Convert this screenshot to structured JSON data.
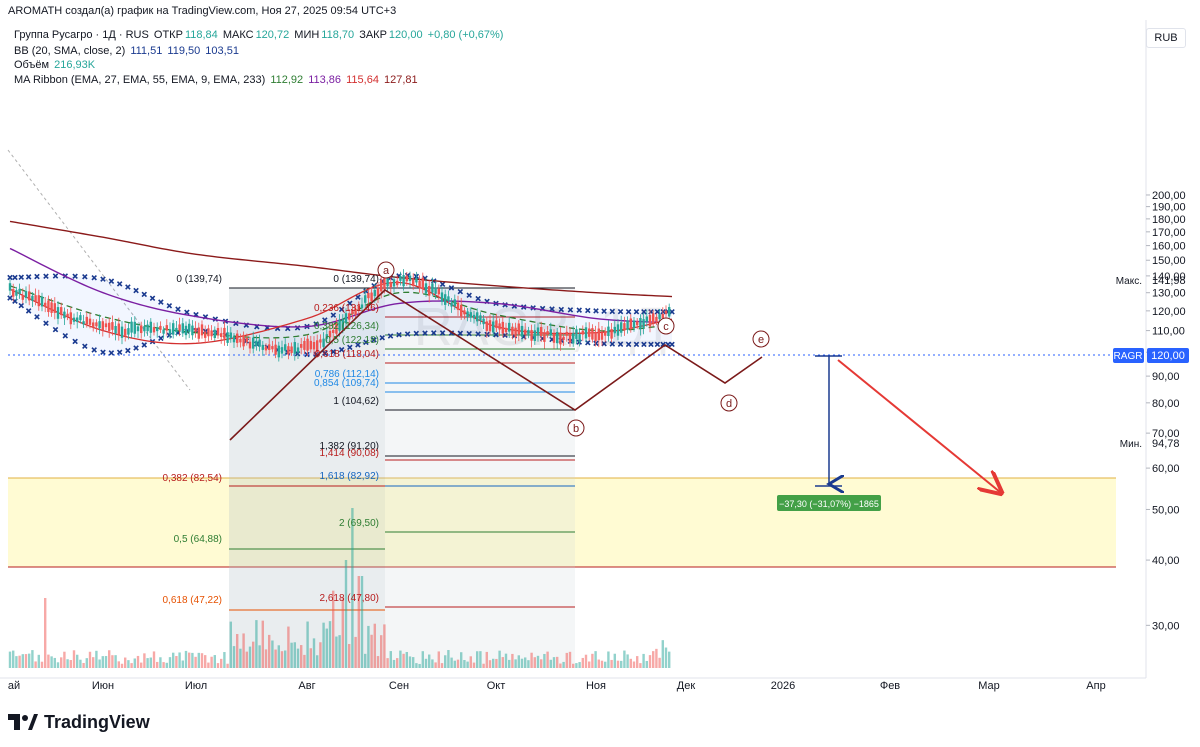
{
  "header": {
    "text": "AROMATH создал(а) график на TradingView.com, Ноя 27, 2025 09:54 UTC+3"
  },
  "legend": {
    "symbol": "Группа Русагро · 1Д · RUS",
    "ohlc": [
      {
        "label": "ОТКР",
        "value": "118,84"
      },
      {
        "label": "МАКС",
        "value": "120,72"
      },
      {
        "label": "МИН",
        "value": "118,70"
      },
      {
        "label": "ЗАКР",
        "value": "120,00"
      }
    ],
    "change": "+0,80 (+0,67%)",
    "bb": {
      "label": "BB (20, SMA, close, 2)",
      "values": [
        "111,51",
        "119,50",
        "103,51"
      ]
    },
    "volume": {
      "label": "Объём",
      "value": "216,93K"
    },
    "ma_ribbon": {
      "label": "MA Ribbon (EMA, 27, EMA, 55, EMA, 9, EMA, 233)",
      "values": [
        "112,92",
        "113,86",
        "115,64",
        "127,81"
      ]
    }
  },
  "currency": "RUB",
  "watermark": "RAGR, 1Д",
  "price_axis": {
    "ticks": [
      "200,00",
      "190,00",
      "180,00",
      "170,00",
      "160,00",
      "150,00",
      "140,00",
      "130,00",
      "120,00",
      "110,00",
      "100,00",
      "90,00",
      "80,00",
      "70,00",
      "60,00",
      "50,00",
      "40,00",
      "30,00"
    ]
  },
  "time_axis": {
    "ticks": [
      "ай",
      "Июн",
      "Июл",
      "Авг",
      "Сен",
      "Окт",
      "Ноя",
      "Дек",
      "2026",
      "Фев",
      "Мар",
      "Апр"
    ]
  },
  "price_badges": {
    "max": {
      "label": "Макс.",
      "value": "141,98"
    },
    "current": {
      "label": "RAGR",
      "value": "120,00"
    },
    "min": {
      "label": "Мин.",
      "value": "94,78"
    }
  },
  "fib_left": [
    {
      "text": "0 (139,74)",
      "color": "#131722"
    },
    {
      "text": "0,382 (82,54)",
      "color": "#b71c1c"
    },
    {
      "text": "0,5 (64,88)",
      "color": "#2e7d32"
    },
    {
      "text": "0,618 (47,22)",
      "color": "#e65100"
    }
  ],
  "fib_right": [
    {
      "text": "0 (139,74)",
      "color": "#131722"
    },
    {
      "text": "0,236 (131,46)",
      "color": "#b71c1c"
    },
    {
      "text": "0,382 (126,34)",
      "color": "#2e7d32"
    },
    {
      "text": "0,5 (122,18)",
      "color": "#2e7d32"
    },
    {
      "text": "0,618 (118,04)",
      "color": "#b71c1c"
    },
    {
      "text": "0,786 (112,14)",
      "color": "#1e88e5"
    },
    {
      "text": "0,854 (109,74)",
      "color": "#1e88e5"
    },
    {
      "text": "1 (104,62)",
      "color": "#131722"
    },
    {
      "text": "1,382 (91,20)",
      "color": "#131722"
    },
    {
      "text": "1,414 (90,08)",
      "color": "#b71c1c"
    },
    {
      "text": "1,618 (82,92)",
      "color": "#1565c0"
    },
    {
      "text": "2 (69,50)",
      "color": "#2e7d32"
    },
    {
      "text": "2,618 (47,80)",
      "color": "#b71c1c"
    }
  ],
  "wave_labels": [
    "a",
    "b",
    "c",
    "d",
    "e"
  ],
  "measure_label": "−37,30 (−31,07%) −1865",
  "brand": "TradingView",
  "chart_data": {
    "type": "line",
    "title": "Группа Русагро · 1Д · RUS",
    "ylabel": "RUB",
    "y_scale": "log",
    "ylim": [
      29,
      205
    ],
    "x_ticks": [
      "ай",
      "Июн",
      "Июл",
      "Авг",
      "Сен",
      "Окт",
      "Ноя",
      "Дек",
      "2026",
      "Фев",
      "Мар",
      "Апр"
    ],
    "grid": false,
    "legend_position": "top-left",
    "colors": {
      "up": "#26a69a",
      "down": "#ef5350",
      "bb": "#1a3a8f",
      "ema233": "#8b1a1a",
      "ema55": "#7b1fa2",
      "ema27": "#2e7d32",
      "ema9": "#d32f2f",
      "target_zone": "#fff9c4",
      "arrow": "#e53935",
      "badge": "#2962ff",
      "measure": "#43a047"
    },
    "series": [
      {
        "name": "EMA 233",
        "x": [
          "Май",
          "Июн",
          "Июл",
          "Авг",
          "Сен",
          "Окт",
          "Ноя",
          "27 Ноя"
        ],
        "values": [
          178,
          166,
          154,
          146,
          139,
          134,
          130,
          127.81
        ]
      },
      {
        "name": "EMA 55",
        "x": [
          "Май",
          "Июн",
          "Июл",
          "Авг",
          "Сен",
          "Окт",
          "Ноя",
          "27 Ноя"
        ],
        "values": [
          158,
          130,
          117,
          112,
          124,
          124,
          116,
          113.86
        ]
      },
      {
        "name": "EMA 27",
        "x": [
          "Май",
          "Июн",
          "Июл",
          "Авг",
          "Сен",
          "Окт",
          "Ноя",
          "27 Ноя"
        ],
        "values": [
          134,
          117,
          109,
          108,
          130,
          118,
          110,
          112.92
        ]
      },
      {
        "name": "EMA 9",
        "x": [
          "Май",
          "Июн",
          "Июл",
          "Авг",
          "Сен",
          "Окт",
          "Ноя",
          "27 Ноя"
        ],
        "values": [
          132,
          110,
          104,
          116,
          136,
          112,
          109,
          115.64
        ]
      },
      {
        "name": "BB upper",
        "x": [
          "Май",
          "Июн",
          "Июл",
          "Авг",
          "Сен",
          "Окт",
          "Ноя",
          "27 Ноя"
        ],
        "values": [
          139,
          138,
          118,
          112,
          140,
          124,
          120,
          119.5
        ]
      },
      {
        "name": "BB lower",
        "x": [
          "Май",
          "Июн",
          "Июл",
          "Авг",
          "Сен",
          "Окт",
          "Ноя",
          "27 Ноя"
        ],
        "values": [
          127,
          100,
          110,
          99,
          108,
          108,
          104,
          103.51
        ]
      },
      {
        "name": "Price",
        "x": [
          "Май",
          "Июн",
          "Июл",
          "Авг",
          "Сен",
          "Окт",
          "Ноя",
          "27 Ноя"
        ],
        "values": [
          132,
          112,
          110,
          102,
          137,
          112,
          108,
          120.0
        ]
      }
    ],
    "projection": {
      "waves": [
        "a",
        "b",
        "c",
        "d",
        "e"
      ],
      "target": 82.7,
      "measured_move": "−37,30 (−31,07%)"
    }
  }
}
